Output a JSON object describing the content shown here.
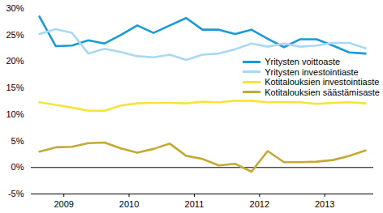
{
  "chart_data": {
    "type": "line",
    "x": [
      2008.625,
      2008.875,
      2009.125,
      2009.375,
      2009.625,
      2009.875,
      2010.125,
      2010.375,
      2010.625,
      2010.875,
      2011.125,
      2011.375,
      2011.625,
      2011.875,
      2012.125,
      2012.375,
      2012.625,
      2012.875,
      2013.125,
      2013.375,
      2013.625
    ],
    "series": [
      {
        "name": "Yritysten voittoaste",
        "color": "#1b9ad6",
        "values": [
          28.5,
          22.9,
          23.0,
          24.0,
          23.4,
          25.0,
          26.8,
          25.4,
          26.8,
          28.2,
          26.0,
          26.0,
          25.2,
          26.0,
          24.3,
          22.7,
          24.2,
          24.2,
          23.0,
          21.7,
          21.5
        ]
      },
      {
        "name": "Yritysten investointiaste",
        "color": "#a9d9f2",
        "values": [
          25.2,
          26.1,
          25.4,
          21.5,
          22.4,
          21.8,
          21.0,
          20.8,
          21.3,
          20.3,
          21.3,
          21.5,
          22.3,
          23.4,
          22.8,
          23.4,
          22.8,
          23.0,
          23.5,
          23.5,
          22.5
        ]
      },
      {
        "name": "Kotitalouksien investointiaste",
        "color": "#f7e43a",
        "values": [
          12.3,
          11.8,
          11.3,
          10.7,
          10.7,
          11.7,
          12.1,
          12.2,
          12.2,
          12.1,
          12.4,
          12.3,
          12.6,
          12.6,
          12.3,
          12.3,
          12.3,
          12.0,
          12.2,
          12.3,
          12.1
        ]
      },
      {
        "name": "Kotitalouksien säästämisaste",
        "color": "#c4aa35",
        "values": [
          3.0,
          3.8,
          3.9,
          4.6,
          4.7,
          3.6,
          2.8,
          3.5,
          4.5,
          2.2,
          1.6,
          0.4,
          0.7,
          -0.8,
          3.1,
          1.0,
          1.0,
          1.1,
          1.4,
          2.2,
          3.2
        ]
      }
    ],
    "xlim": [
      2008.5,
      2013.75
    ],
    "xticks": [
      2009,
      2010,
      2011,
      2012,
      2013
    ],
    "ylim": [
      -5,
      30
    ],
    "yticks": [
      {
        "value": -5,
        "label": "-5%"
      },
      {
        "value": 0,
        "label": "0%"
      },
      {
        "value": 5,
        "label": "5%"
      },
      {
        "value": 10,
        "label": "10%"
      },
      {
        "value": 15,
        "label": "15%"
      },
      {
        "value": 20,
        "label": "20%"
      },
      {
        "value": 25,
        "label": "25%"
      },
      {
        "value": 30,
        "label": "30%"
      }
    ],
    "grid": false,
    "legend": "right"
  }
}
